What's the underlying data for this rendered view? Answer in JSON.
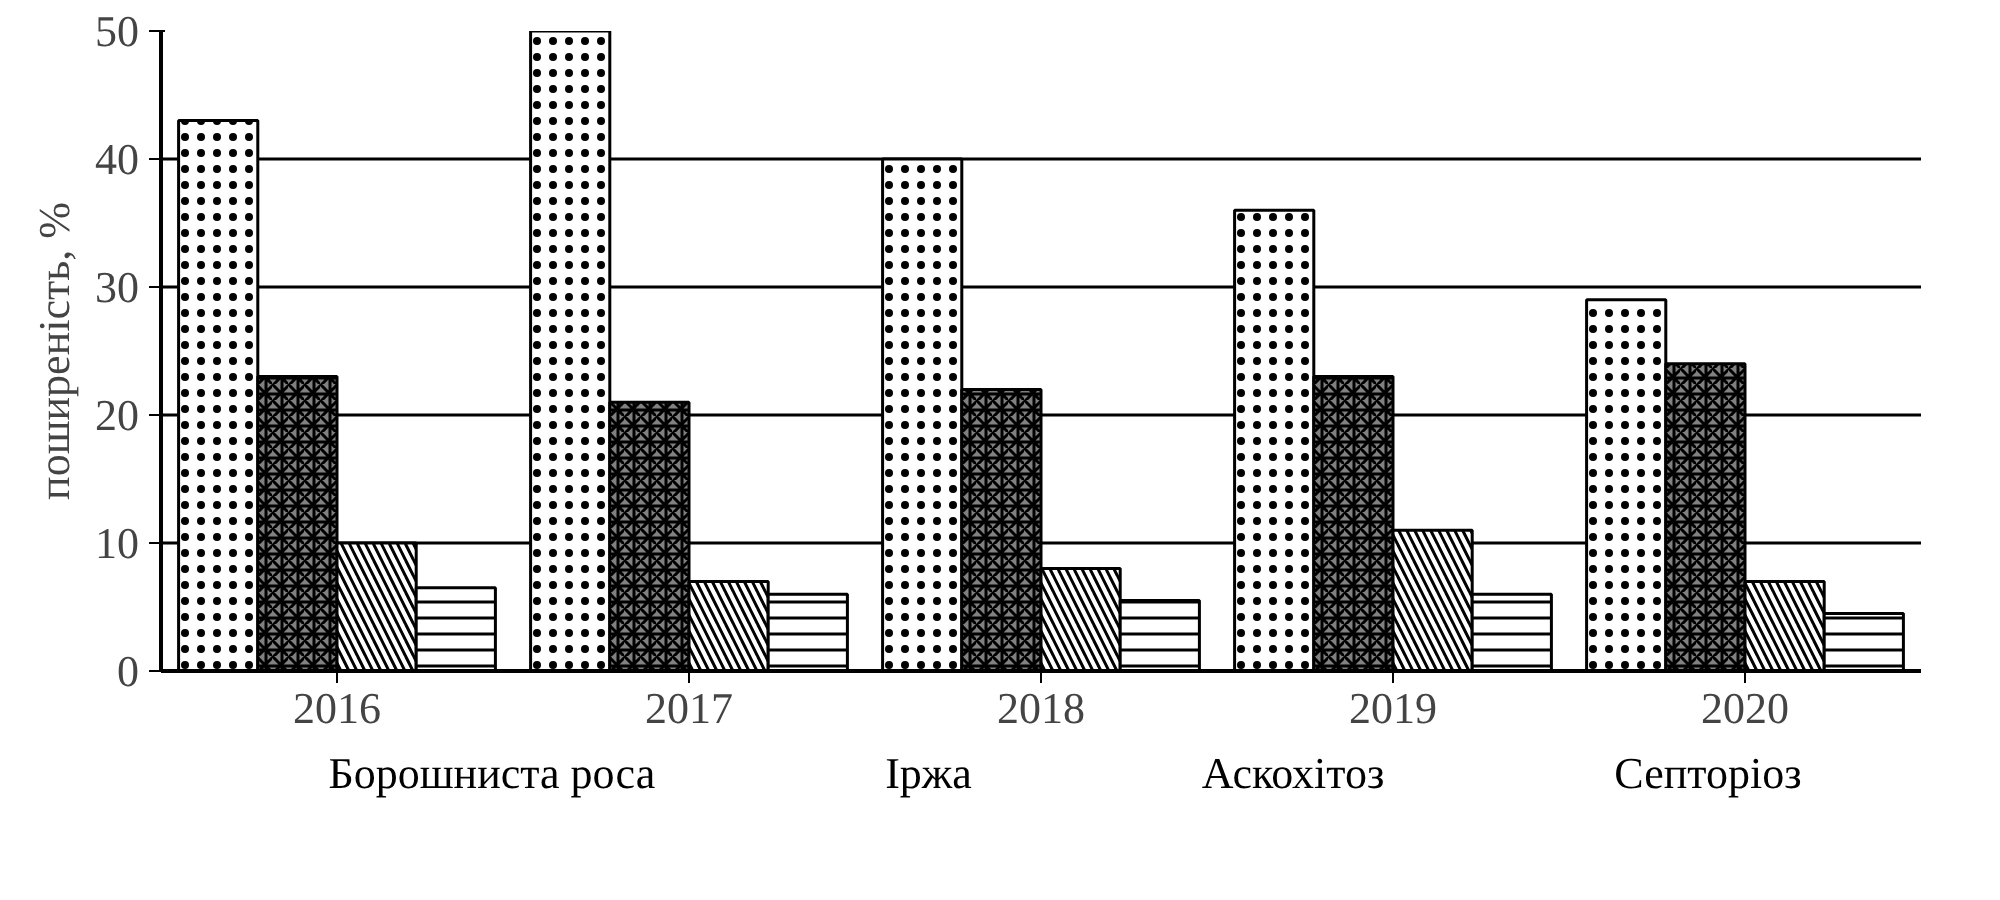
{
  "chart_data": {
    "type": "bar",
    "ylabel": "поширеність, %",
    "categories": [
      "2016",
      "2017",
      "2018",
      "2019",
      "2020"
    ],
    "series": [
      {
        "name": "Борошниста роса",
        "color": "#ffffff",
        "values": [
          43,
          50,
          40,
          36,
          29
        ]
      },
      {
        "name": "Іржа",
        "color": "#808080",
        "values": [
          23,
          21,
          22,
          23,
          24
        ]
      },
      {
        "name": "Аскохітоз",
        "color": "#ffffff",
        "values": [
          10,
          7,
          8,
          11,
          7
        ]
      },
      {
        "name": "Септоріоз",
        "color": "#ffffff",
        "values": [
          6.5,
          6,
          5.5,
          6,
          4.5
        ]
      }
    ],
    "ylim": [
      0,
      50
    ],
    "yticks": [
      0,
      10,
      20,
      30,
      40,
      50
    ],
    "grid": "y",
    "legend": "bottom"
  }
}
